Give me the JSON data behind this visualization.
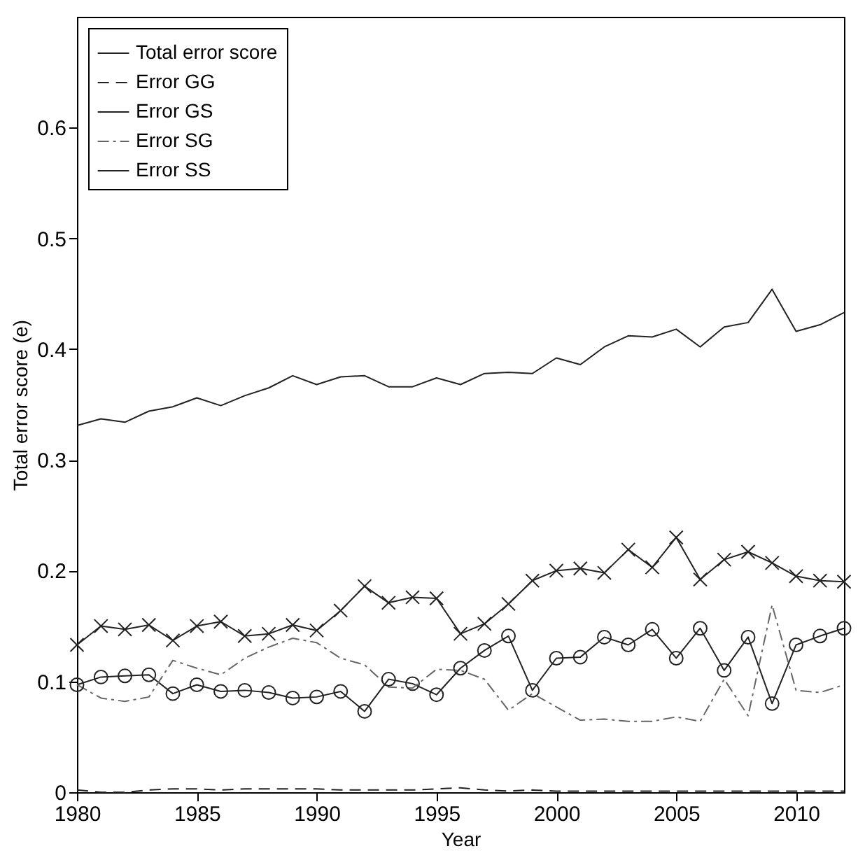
{
  "chart_data": {
    "type": "line",
    "xlabel": "Year",
    "ylabel": "Total error score (e)",
    "x": [
      1980,
      1981,
      1982,
      1983,
      1984,
      1985,
      1986,
      1987,
      1988,
      1989,
      1990,
      1991,
      1992,
      1993,
      1994,
      1995,
      1996,
      1997,
      1998,
      1999,
      2000,
      2001,
      2002,
      2003,
      2004,
      2005,
      2006,
      2007,
      2008,
      2009,
      2010,
      2011,
      2012
    ],
    "xlim": [
      1980,
      2012
    ],
    "xticks": [
      1980,
      1985,
      1990,
      1995,
      2000,
      2005,
      2010
    ],
    "ylim": [
      0,
      0.7
    ],
    "yticks": [
      0,
      0.1,
      0.2,
      0.3,
      0.4,
      0.5,
      0.6
    ],
    "grid": false,
    "legend": "top left",
    "series": [
      {
        "name": "Total error score",
        "color": "#222222",
        "line_style": "solid",
        "marker": "none",
        "values": [
          0.331,
          0.337,
          0.334,
          0.344,
          0.348,
          0.356,
          0.349,
          0.358,
          0.365,
          0.376,
          0.368,
          0.375,
          0.376,
          0.366,
          0.366,
          0.374,
          0.368,
          0.378,
          0.379,
          0.378,
          0.392,
          0.386,
          0.402,
          0.412,
          0.411,
          0.418,
          0.402,
          0.42,
          0.424,
          0.454,
          0.416,
          0.422,
          0.433
        ]
      },
      {
        "name": "Error GG",
        "color": "#222222",
        "line_style": "dashed",
        "marker": "none",
        "values": [
          0.002,
          0.0,
          0.0,
          0.002,
          0.003,
          0.003,
          0.002,
          0.003,
          0.003,
          0.003,
          0.003,
          0.002,
          0.002,
          0.002,
          0.002,
          0.003,
          0.004,
          0.002,
          0.001,
          0.002,
          0.001,
          0.001,
          0.001,
          0.001,
          0.001,
          0.001,
          0.001,
          0.001,
          0.001,
          0.001,
          0.001,
          0.001,
          0.001
        ]
      },
      {
        "name": "Error GS",
        "color": "#222222",
        "line_style": "solid",
        "marker": "circle",
        "values": [
          0.097,
          0.104,
          0.105,
          0.106,
          0.089,
          0.097,
          0.091,
          0.092,
          0.09,
          0.085,
          0.086,
          0.091,
          0.073,
          0.102,
          0.098,
          0.088,
          0.112,
          0.128,
          0.141,
          0.092,
          0.121,
          0.122,
          0.14,
          0.133,
          0.147,
          0.121,
          0.148,
          0.11,
          0.14,
          0.08,
          0.133,
          0.141,
          0.148
        ]
      },
      {
        "name": "Error SG",
        "color": "#666666",
        "line_style": "dashdot",
        "marker": "none",
        "values": [
          0.097,
          0.085,
          0.082,
          0.086,
          0.119,
          0.112,
          0.106,
          0.121,
          0.131,
          0.139,
          0.135,
          0.121,
          0.115,
          0.095,
          0.094,
          0.111,
          0.11,
          0.102,
          0.074,
          0.089,
          0.077,
          0.065,
          0.066,
          0.064,
          0.064,
          0.068,
          0.064,
          0.102,
          0.069,
          0.169,
          0.092,
          0.09,
          0.097
        ]
      },
      {
        "name": "Error SS",
        "color": "#222222",
        "line_style": "solid",
        "marker": "cross",
        "values": [
          0.133,
          0.15,
          0.147,
          0.151,
          0.137,
          0.15,
          0.154,
          0.141,
          0.143,
          0.151,
          0.146,
          0.164,
          0.186,
          0.171,
          0.176,
          0.175,
          0.143,
          0.152,
          0.17,
          0.191,
          0.2,
          0.202,
          0.198,
          0.219,
          0.203,
          0.23,
          0.192,
          0.21,
          0.217,
          0.207,
          0.195,
          0.191,
          0.19
        ]
      }
    ]
  }
}
